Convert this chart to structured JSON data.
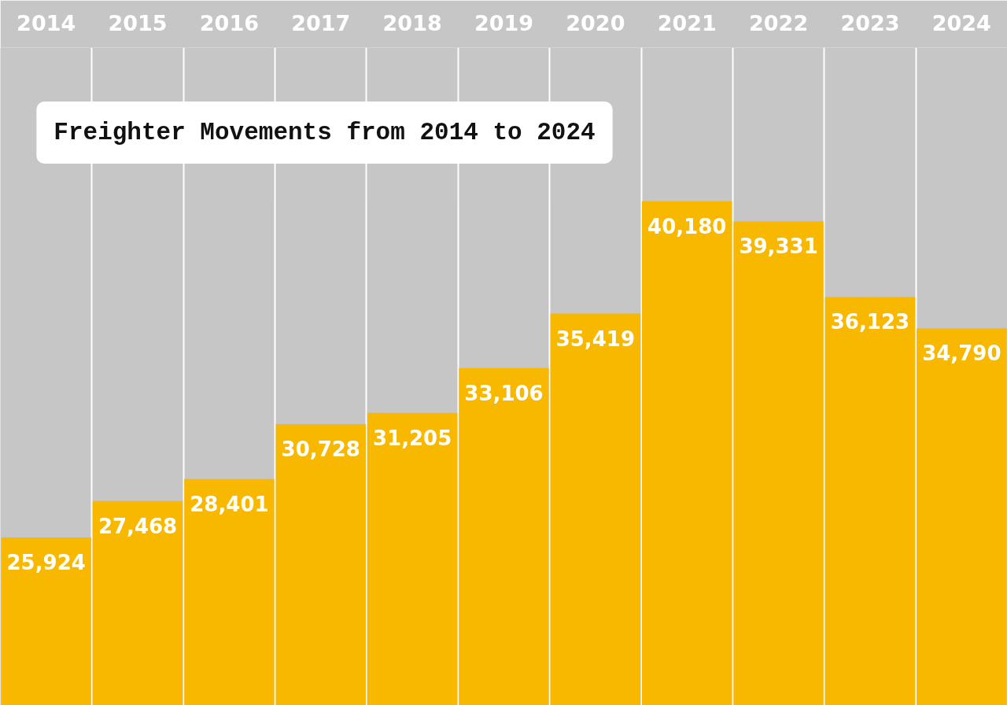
{
  "chart_data": {
    "type": "bar",
    "title": "Freighter Movements from 2014 to 2024",
    "categories": [
      "2014",
      "2015",
      "2016",
      "2017",
      "2018",
      "2019",
      "2020",
      "2021",
      "2022",
      "2023",
      "2024"
    ],
    "values": [
      25924,
      27468,
      28401,
      30728,
      31205,
      33106,
      35419,
      40180,
      39331,
      36123,
      34790
    ],
    "value_labels": [
      "25,924",
      "27,468",
      "28,401",
      "30,728",
      "31,205",
      "33,106",
      "35,419",
      "40,180",
      "39,331",
      "36,123",
      "34,790"
    ],
    "color": "#f8b800",
    "ylim": [
      18800,
      46700
    ],
    "grid": "x",
    "tick_labels": "x"
  }
}
